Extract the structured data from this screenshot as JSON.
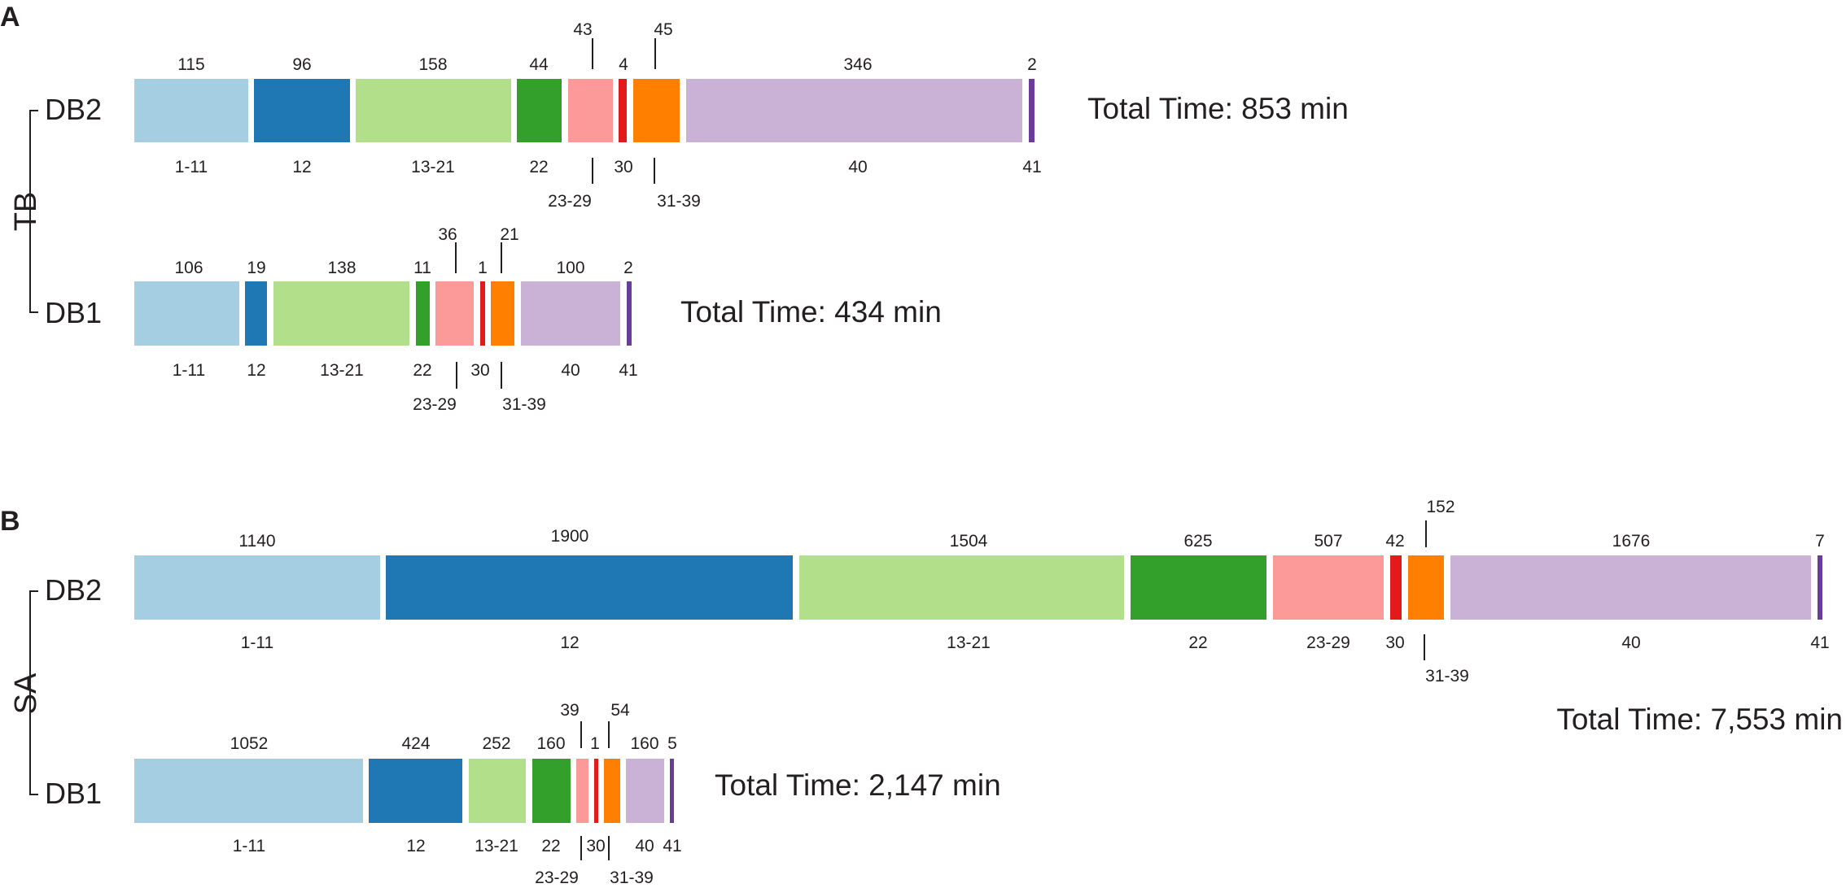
{
  "chart_data": [
    {
      "type": "bar",
      "orientation": "horizontal-stacked",
      "panel": "A",
      "group_label": "TB",
      "units": "min",
      "categories": [
        "1-11",
        "12",
        "13-21",
        "22",
        "23-29",
        "30",
        "31-39",
        "40",
        "41"
      ],
      "colors": [
        "#a6cee3",
        "#1f78b4",
        "#b2df8a",
        "#33a02c",
        "#fb9a99",
        "#e31a1c",
        "#ff7f00",
        "#cab2d6",
        "#6a3d9a"
      ],
      "series": [
        {
          "name": "DB2",
          "values": [
            115,
            96,
            158,
            44,
            43,
            4,
            45,
            346,
            2
          ],
          "value_labels": [
            "115",
            "96",
            "158",
            "44",
            "43",
            "4",
            "45",
            "346",
            "2"
          ],
          "total_label": "Total Time: 853 min"
        },
        {
          "name": "DB1",
          "values": [
            106,
            19,
            138,
            11,
            36,
            1,
            21,
            100,
            2
          ],
          "value_labels": [
            "106",
            "19",
            "138",
            "11",
            "36",
            "1",
            "21",
            "100",
            "2"
          ],
          "total_label": "Total Time: 434 min"
        }
      ]
    },
    {
      "type": "bar",
      "orientation": "horizontal-stacked",
      "panel": "B",
      "group_label": "SA",
      "units": "min",
      "categories": [
        "1-11",
        "12",
        "13-21",
        "22",
        "23-29",
        "30",
        "31-39",
        "40",
        "41"
      ],
      "colors": [
        "#a6cee3",
        "#1f78b4",
        "#b2df8a",
        "#33a02c",
        "#fb9a99",
        "#e31a1c",
        "#ff7f00",
        "#cab2d6",
        "#6a3d9a"
      ],
      "series": [
        {
          "name": "DB2",
          "values": [
            1140,
            1900,
            1504,
            625,
            507,
            42,
            152,
            1676,
            7
          ],
          "value_labels": [
            "1140",
            "1900",
            "1504",
            "625",
            "507",
            "42",
            "152",
            "1676",
            "7"
          ],
          "total_label": "Total Time: 7,553 min"
        },
        {
          "name": "DB1",
          "values": [
            1052,
            424,
            252,
            160,
            39,
            1,
            54,
            160,
            5
          ],
          "value_labels": [
            "1052",
            "424",
            "252",
            "160",
            "39",
            "1",
            "54",
            "160",
            "5"
          ],
          "total_label": "Total Time: 2,147 min"
        }
      ]
    }
  ]
}
